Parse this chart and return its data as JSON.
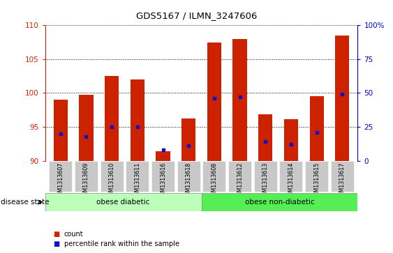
{
  "title": "GDS5167 / ILMN_3247606",
  "samples": [
    "GSM1313607",
    "GSM1313609",
    "GSM1313610",
    "GSM1313611",
    "GSM1313616",
    "GSM1313618",
    "GSM1313608",
    "GSM1313612",
    "GSM1313613",
    "GSM1313614",
    "GSM1313615",
    "GSM1313617"
  ],
  "counts": [
    99.0,
    99.7,
    102.5,
    102.0,
    91.4,
    96.2,
    107.5,
    108.0,
    96.8,
    96.1,
    99.5,
    108.5
  ],
  "percentile_ranks": [
    20,
    18,
    25,
    25,
    8,
    11,
    46,
    47,
    14,
    12,
    21,
    49
  ],
  "ylim_left": [
    90,
    110
  ],
  "ylim_right": [
    0,
    100
  ],
  "yticks_left": [
    90,
    95,
    100,
    105,
    110
  ],
  "yticks_right": [
    0,
    25,
    50,
    75,
    100
  ],
  "bar_color": "#cc2200",
  "marker_color": "#1111cc",
  "bar_bottom": 90,
  "light_green": "#bbffbb",
  "dark_green": "#55ee55",
  "tick_color_left": "#cc2200",
  "tick_color_right": "#0000bb",
  "bar_width": 0.55,
  "xticklabel_bg": "#c8c8c8"
}
